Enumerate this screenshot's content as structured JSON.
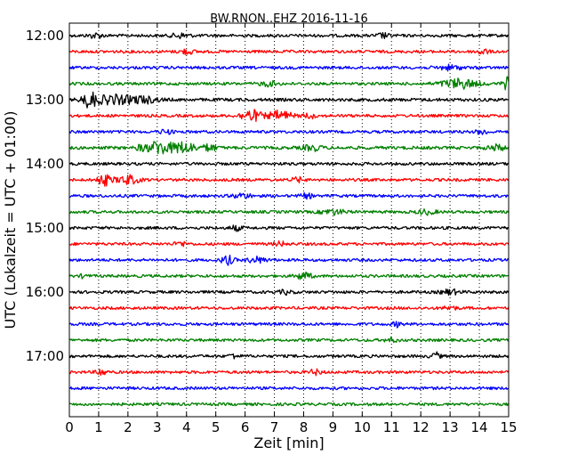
{
  "chart_data": {
    "type": "line",
    "title": "BW.RNON..EHZ 2016-11-16",
    "xlabel": "Zeit  [min]",
    "ylabel": "UTC (Lokalzeit = UTC + 01:00)",
    "xlim": [
      0,
      15
    ],
    "x_ticks": [
      "0",
      "1",
      "2",
      "3",
      "4",
      "5",
      "6",
      "7",
      "8",
      "9",
      "10",
      "11",
      "12",
      "13",
      "14",
      "15"
    ],
    "y_ticks": [
      "12:00",
      "13:00",
      "14:00",
      "15:00",
      "16:00",
      "17:00"
    ],
    "grid": true,
    "colors": [
      "#000000",
      "#ff0000",
      "#0000ff",
      "#008000"
    ],
    "traces": [
      {
        "start": "12:00",
        "color": "#000000",
        "noise": 1.0,
        "events": [
          [
            0.9,
            0.25,
            1.6
          ],
          [
            3.8,
            0.3,
            1.6
          ],
          [
            10.7,
            0.2,
            1.6
          ]
        ]
      },
      {
        "start": "12:15",
        "color": "#ff0000",
        "noise": 1.0,
        "events": [
          [
            4.0,
            0.25,
            1.5
          ],
          [
            14.1,
            0.2,
            2.0
          ]
        ]
      },
      {
        "start": "12:30",
        "color": "#0000ff",
        "noise": 1.0,
        "events": [
          [
            13.0,
            0.4,
            1.5
          ]
        ]
      },
      {
        "start": "12:45",
        "color": "#008000",
        "noise": 1.0,
        "events": [
          [
            6.8,
            0.3,
            1.5
          ],
          [
            13.3,
            0.6,
            3.2
          ],
          [
            14.95,
            0.15,
            4.0
          ]
        ]
      },
      {
        "start": "13:00",
        "color": "#000000",
        "noise": 1.1,
        "events": [
          [
            0.7,
            0.25,
            5.0
          ],
          [
            1.5,
            0.6,
            3.0
          ],
          [
            2.5,
            0.5,
            2.2
          ]
        ]
      },
      {
        "start": "13:15",
        "color": "#ff0000",
        "noise": 1.0,
        "events": [
          [
            6.2,
            0.35,
            4.0
          ],
          [
            7.2,
            0.4,
            3.2
          ],
          [
            8.2,
            0.2,
            1.6
          ]
        ]
      },
      {
        "start": "13:30",
        "color": "#0000ff",
        "noise": 1.0,
        "events": [
          [
            3.3,
            0.2,
            1.5
          ],
          [
            14.1,
            0.2,
            1.6
          ]
        ]
      },
      {
        "start": "13:45",
        "color": "#008000",
        "noise": 1.1,
        "events": [
          [
            2.5,
            0.2,
            2.2
          ],
          [
            3.0,
            0.25,
            4.0
          ],
          [
            3.5,
            0.5,
            2.4
          ],
          [
            4.0,
            0.4,
            2.6
          ],
          [
            4.8,
            0.2,
            2.5
          ],
          [
            8.3,
            0.3,
            1.8
          ],
          [
            14.6,
            0.3,
            1.8
          ]
        ]
      },
      {
        "start": "14:00",
        "color": "#000000",
        "noise": 1.0,
        "events": []
      },
      {
        "start": "14:15",
        "color": "#ff0000",
        "noise": 1.0,
        "events": [
          [
            1.2,
            0.25,
            3.5
          ],
          [
            2.0,
            0.35,
            3.0
          ],
          [
            7.8,
            0.2,
            1.5
          ]
        ]
      },
      {
        "start": "14:30",
        "color": "#0000ff",
        "noise": 1.0,
        "events": [
          [
            5.9,
            0.3,
            1.6
          ],
          [
            8.1,
            0.2,
            1.5
          ]
        ]
      },
      {
        "start": "14:45",
        "color": "#008000",
        "noise": 1.0,
        "events": [
          [
            9.0,
            0.4,
            1.6
          ],
          [
            12.2,
            0.3,
            1.5
          ]
        ]
      },
      {
        "start": "15:00",
        "color": "#000000",
        "noise": 1.0,
        "events": [
          [
            5.7,
            0.2,
            1.6
          ]
        ]
      },
      {
        "start": "15:15",
        "color": "#ff0000",
        "noise": 1.0,
        "events": [
          [
            3.8,
            0.2,
            1.5
          ],
          [
            7.2,
            0.2,
            1.4
          ]
        ]
      },
      {
        "start": "15:30",
        "color": "#0000ff",
        "noise": 1.0,
        "events": [
          [
            5.4,
            0.2,
            3.0
          ],
          [
            6.4,
            0.3,
            2.0
          ]
        ]
      },
      {
        "start": "15:45",
        "color": "#008000",
        "noise": 1.0,
        "events": [
          [
            8.0,
            0.25,
            2.4
          ],
          [
            0.5,
            0.1,
            1.5
          ]
        ]
      },
      {
        "start": "16:00",
        "color": "#000000",
        "noise": 1.0,
        "events": [
          [
            7.4,
            0.2,
            1.4
          ],
          [
            13.0,
            0.3,
            1.6
          ]
        ]
      },
      {
        "start": "16:15",
        "color": "#ff0000",
        "noise": 1.0,
        "events": [
          [
            13.0,
            0.2,
            1.4
          ]
        ]
      },
      {
        "start": "16:30",
        "color": "#0000ff",
        "noise": 1.0,
        "events": [
          [
            11.2,
            0.15,
            1.6
          ]
        ]
      },
      {
        "start": "16:45",
        "color": "#008000",
        "noise": 1.0,
        "events": [
          [
            11.0,
            0.2,
            1.4
          ]
        ]
      },
      {
        "start": "17:00",
        "color": "#000000",
        "noise": 1.0,
        "events": [
          [
            5.6,
            0.15,
            1.6
          ],
          [
            12.5,
            0.15,
            2.4
          ]
        ]
      },
      {
        "start": "17:15",
        "color": "#ff0000",
        "noise": 1.0,
        "events": [
          [
            1.1,
            0.15,
            2.5
          ],
          [
            8.4,
            0.2,
            1.6
          ]
        ]
      },
      {
        "start": "17:30",
        "color": "#0000ff",
        "noise": 1.0,
        "events": []
      },
      {
        "start": "17:45",
        "color": "#008000",
        "noise": 1.0,
        "events": []
      }
    ]
  }
}
